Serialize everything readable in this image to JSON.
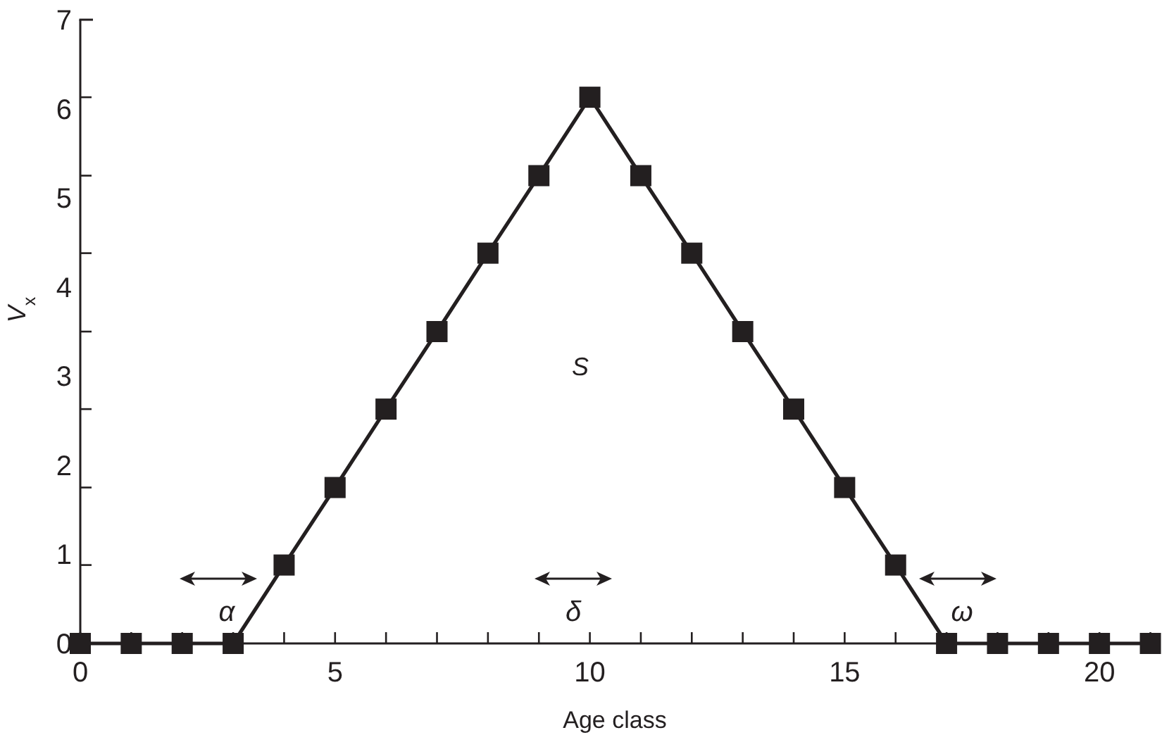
{
  "chart_data": {
    "type": "line",
    "xlabel": "Age class",
    "ylabel": "V$_{x}$",
    "x": [
      0,
      1,
      2,
      3,
      4,
      5,
      6,
      7,
      8,
      9,
      10,
      11,
      12,
      13,
      14,
      15,
      16,
      17,
      18,
      19,
      20,
      21
    ],
    "series": [
      {
        "color": "#231f20",
        "values": [
          0,
          0,
          0,
          0,
          0.88,
          1.75,
          2.63,
          3.5,
          4.38,
          5.25,
          6.13,
          5.25,
          4.38,
          3.5,
          2.63,
          1.75,
          0.88,
          0,
          0,
          0,
          0,
          0
        ]
      }
    ],
    "xlim": [
      0,
      21.2
    ],
    "xticks": [
      0,
      {
        "value": 1,
        "label": null
      },
      {
        "value": 2,
        "label": null
      },
      {
        "value": 3,
        "label": null
      },
      {
        "value": 4,
        "label": null
      },
      5,
      {
        "value": 6,
        "label": null
      },
      {
        "value": 7,
        "label": null
      },
      {
        "value": 8,
        "label": null
      },
      {
        "value": 9,
        "label": null
      },
      10,
      {
        "value": 11,
        "label": null
      },
      {
        "value": 12,
        "label": null
      },
      {
        "value": 13,
        "label": null
      },
      {
        "value": 14,
        "label": null
      },
      15,
      {
        "value": 16,
        "label": null
      },
      {
        "value": 17,
        "label": null
      },
      {
        "value": 18,
        "label": null
      },
      {
        "value": 19,
        "label": null
      },
      20,
      {
        "value": 21,
        "label": null
      }
    ],
    "ylim": [
      0,
      7
    ],
    "yticks": [
      0,
      {
        "value": 0.88,
        "label": null
      },
      1,
      {
        "value": 1.75,
        "label": null
      },
      2,
      {
        "value": 2.63,
        "label": null
      },
      3,
      {
        "value": 3.5,
        "label": null
      },
      4,
      {
        "value": 4.38,
        "label": null
      },
      5,
      {
        "value": 5.25,
        "label": null
      },
      6,
      {
        "value": 6.13,
        "label": null
      },
      7
    ],
    "grid": false,
    "marker": "square",
    "line_style": "solid",
    "annotations": [
      "S",
      "α",
      "δ",
      "ω"
    ]
  }
}
